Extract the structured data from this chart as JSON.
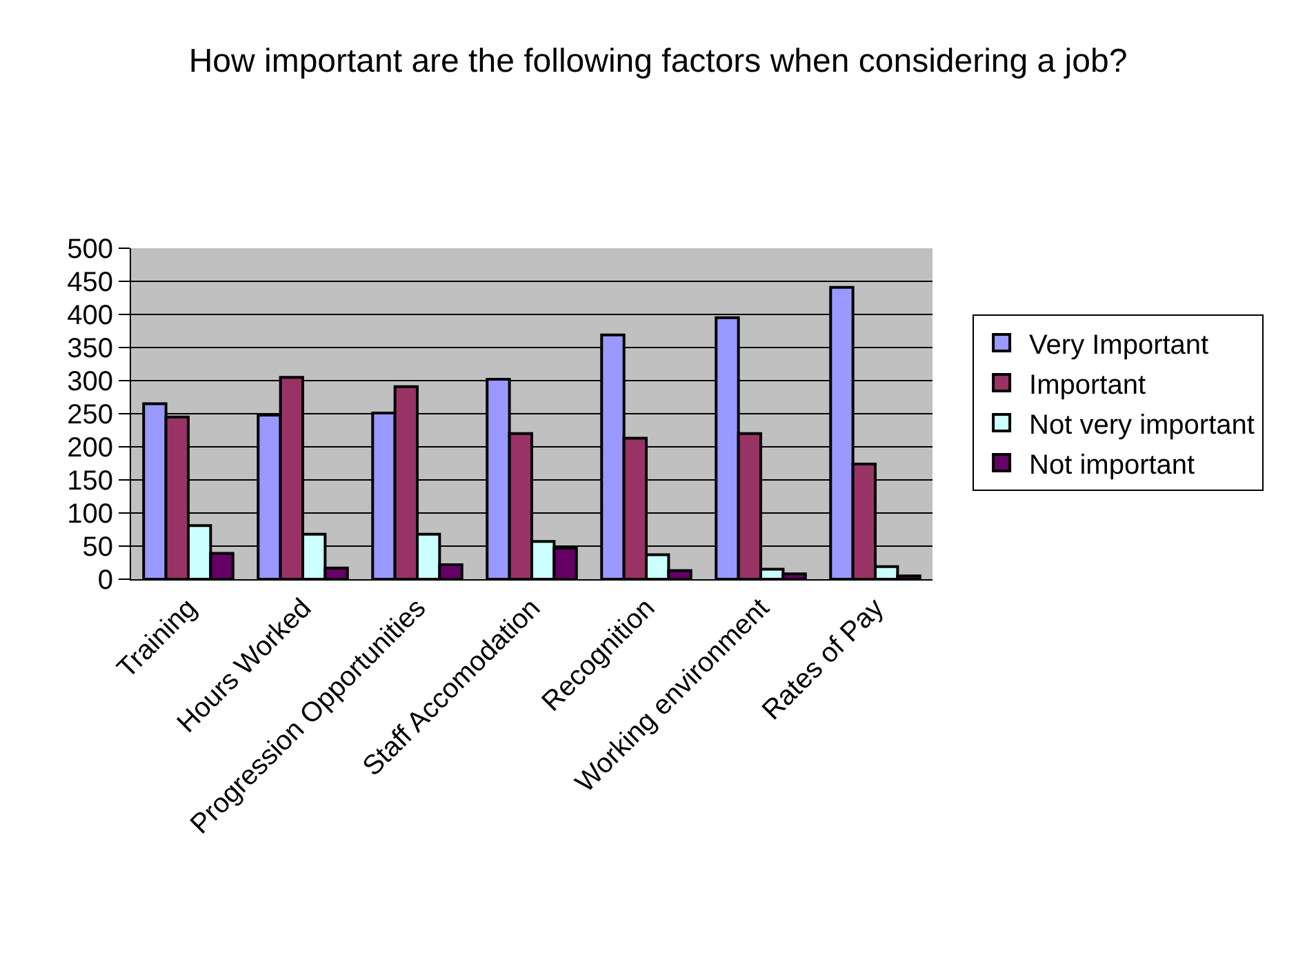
{
  "chart_data": {
    "type": "bar",
    "title": "How important are the following factors when considering a job?",
    "categories": [
      "Training",
      "Hours Worked",
      "Progression Opportunities",
      "Staff Accomodation",
      "Recognition",
      "Working environment",
      "Rates of Pay"
    ],
    "series": [
      {
        "name": "Very Important",
        "color": "#9999ff",
        "values": [
          265,
          248,
          251,
          302,
          369,
          395,
          441
        ]
      },
      {
        "name": "Important",
        "color": "#993366",
        "values": [
          245,
          305,
          291,
          220,
          213,
          220,
          174
        ]
      },
      {
        "name": "Not very important",
        "color": "#ccffff",
        "values": [
          81,
          68,
          68,
          57,
          37,
          15,
          19
        ]
      },
      {
        "name": "Not important",
        "color": "#660066",
        "values": [
          39,
          17,
          22,
          47,
          13,
          8,
          5
        ]
      }
    ],
    "ylim": [
      0,
      500
    ],
    "yticks": [
      0,
      50,
      100,
      150,
      200,
      250,
      300,
      350,
      400,
      450,
      500
    ],
    "grid": "y",
    "legend": "right"
  }
}
